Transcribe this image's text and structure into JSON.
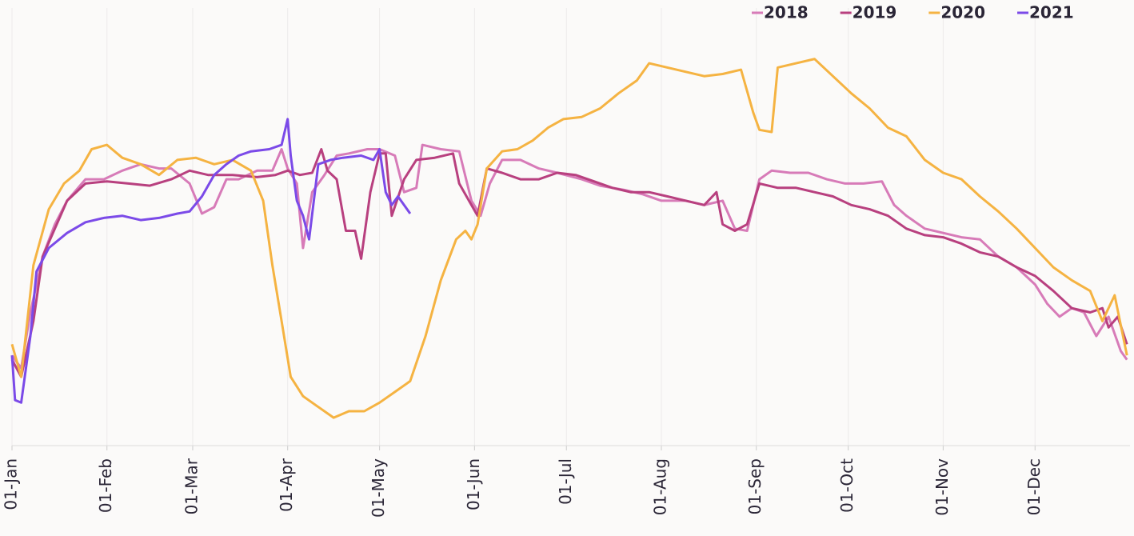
{
  "chart_data": {
    "type": "line",
    "xlim": [
      0,
      365
    ],
    "ylim": [
      0,
      100
    ],
    "grid": true,
    "legend": "top-right",
    "xticks": [
      {
        "value": 0,
        "label": "01-Jan"
      },
      {
        "value": 31,
        "label": "01-Feb"
      },
      {
        "value": 59,
        "label": "01-Mar"
      },
      {
        "value": 90,
        "label": "01-Apr"
      },
      {
        "value": 120,
        "label": "01-May"
      },
      {
        "value": 151,
        "label": "01-Jun"
      },
      {
        "value": 181,
        "label": "01-Jul"
      },
      {
        "value": 212,
        "label": "01-Aug"
      },
      {
        "value": 243,
        "label": "01-Sep"
      },
      {
        "value": 273,
        "label": "01-Oct"
      },
      {
        "value": 304,
        "label": "01-Nov"
      },
      {
        "value": 334,
        "label": "01-Dec"
      }
    ],
    "series": [
      {
        "name": "2018",
        "color": "#d77bb8",
        "x": [
          0,
          3,
          6,
          10,
          14,
          18,
          24,
          30,
          36,
          42,
          48,
          52,
          58,
          62,
          66,
          70,
          74,
          80,
          85,
          88,
          90,
          93,
          95,
          98,
          102,
          106,
          110,
          116,
          120,
          125,
          128,
          132,
          134,
          140,
          146,
          150,
          153,
          156,
          160,
          166,
          172,
          178,
          186,
          192,
          200,
          206,
          212,
          220,
          226,
          232,
          236,
          240,
          244,
          248,
          254,
          260,
          266,
          272,
          278,
          284,
          288,
          292,
          298,
          304,
          310,
          316,
          322,
          328,
          334,
          338,
          342,
          346,
          350,
          354,
          358,
          362,
          364
        ],
        "values": [
          21,
          18,
          31,
          44,
          51.5,
          57,
          62,
          62,
          64,
          65.5,
          64.5,
          64.5,
          61,
          54,
          55.5,
          62,
          62,
          64,
          64,
          69,
          64.5,
          61,
          46,
          59,
          63,
          67.5,
          68,
          69,
          69,
          67.5,
          59,
          60,
          70,
          69,
          68.5,
          57,
          53.5,
          61,
          66.5,
          66.5,
          64.5,
          63.5,
          62,
          60.5,
          59.5,
          58.5,
          57,
          57,
          56,
          57,
          50.5,
          50,
          62,
          64,
          63.5,
          63.5,
          62,
          61,
          61,
          61.5,
          56,
          53.5,
          50.5,
          49.5,
          48.5,
          48,
          44,
          41.5,
          37.5,
          33,
          30,
          32,
          31,
          25.5,
          30,
          22,
          20
        ]
      },
      {
        "name": "2019",
        "color": "#b8407f",
        "x": [
          0,
          3,
          7,
          10,
          14,
          18,
          24,
          31,
          38,
          45,
          52,
          58,
          64,
          72,
          80,
          86,
          90,
          94,
          98,
          101,
          103,
          106,
          109,
          112,
          114,
          117,
          120,
          122,
          124,
          128,
          132,
          138,
          144,
          146,
          150,
          152,
          155,
          160,
          166,
          172,
          178,
          184,
          190,
          196,
          202,
          208,
          214,
          220,
          226,
          230,
          232,
          236,
          240,
          244,
          250,
          256,
          262,
          268,
          274,
          280,
          286,
          292,
          298,
          304,
          310,
          316,
          322,
          328,
          334,
          340,
          346,
          352,
          356,
          358,
          361,
          364
        ],
        "values": [
          20,
          16,
          29,
          44,
          50.5,
          57,
          61,
          61.5,
          61,
          60.5,
          62,
          64,
          63,
          63,
          62.5,
          63,
          64,
          63,
          63.5,
          69,
          64,
          62,
          50,
          50,
          43.5,
          59,
          68,
          68,
          53.5,
          62,
          66.5,
          67,
          68,
          61,
          56,
          53.5,
          64.5,
          63.5,
          62,
          62,
          63.5,
          63,
          61.5,
          60,
          59,
          59,
          58,
          57,
          56,
          59,
          51.5,
          50,
          51.5,
          61,
          60,
          60,
          59,
          58,
          56,
          55,
          53.5,
          50.5,
          49,
          48.5,
          47,
          45,
          44,
          41.5,
          39.5,
          36,
          32,
          31,
          32,
          27.5,
          30,
          23.6
        ]
      },
      {
        "name": "2020",
        "color": "#f5b342",
        "x": [
          0,
          3,
          7,
          12,
          17,
          22,
          26,
          31,
          36,
          42,
          48,
          54,
          60,
          66,
          72,
          78,
          82,
          85,
          88,
          91,
          95,
          100,
          105,
          110,
          115,
          120,
          125,
          130,
          135,
          140,
          145,
          148,
          150,
          152,
          155,
          160,
          165,
          170,
          175,
          180,
          186,
          192,
          198,
          204,
          208,
          214,
          220,
          226,
          232,
          238,
          242,
          244,
          248,
          250,
          256,
          262,
          268,
          274,
          280,
          286,
          292,
          298,
          304,
          310,
          316,
          322,
          328,
          334,
          340,
          346,
          352,
          356,
          360,
          364
        ],
        "values": [
          23.6,
          16,
          42,
          55,
          61,
          64,
          69,
          70,
          67,
          65.5,
          63,
          66.5,
          67,
          65.5,
          66.5,
          64,
          57,
          42,
          29,
          16,
          11.5,
          9,
          6.5,
          8,
          8,
          10,
          12.5,
          15,
          25.5,
          38.5,
          48,
          50,
          48,
          51.5,
          64.5,
          68.5,
          69,
          71,
          74,
          76,
          76.5,
          78.5,
          82,
          85,
          89,
          88,
          87,
          86,
          86.5,
          87.5,
          77.5,
          73.5,
          73,
          88,
          89,
          90,
          86,
          82,
          78.5,
          74,
          72,
          66.5,
          63.5,
          62,
          58,
          54.5,
          50.5,
          46,
          41.5,
          38.5,
          36,
          29,
          35,
          21
        ]
      },
      {
        "name": "2021",
        "color": "#7b4ae8",
        "x": [
          0,
          1,
          3,
          6,
          8,
          12,
          18,
          24,
          30,
          36,
          42,
          48,
          54,
          58,
          62,
          66,
          70,
          74,
          78,
          84,
          88,
          90,
          91,
          93,
          95,
          97,
          100,
          104,
          108,
          114,
          118,
          120,
          122,
          124,
          126,
          130
        ],
        "values": [
          21,
          10.6,
          10,
          25.5,
          40.5,
          46,
          49.5,
          52,
          53,
          53.5,
          52.5,
          53,
          54,
          54.5,
          58,
          63,
          65.5,
          67.5,
          68.5,
          69,
          70,
          76,
          67.5,
          57,
          53.5,
          48,
          65.5,
          66.5,
          67,
          67.5,
          66.5,
          69,
          59,
          56,
          58,
          54
        ]
      }
    ]
  }
}
